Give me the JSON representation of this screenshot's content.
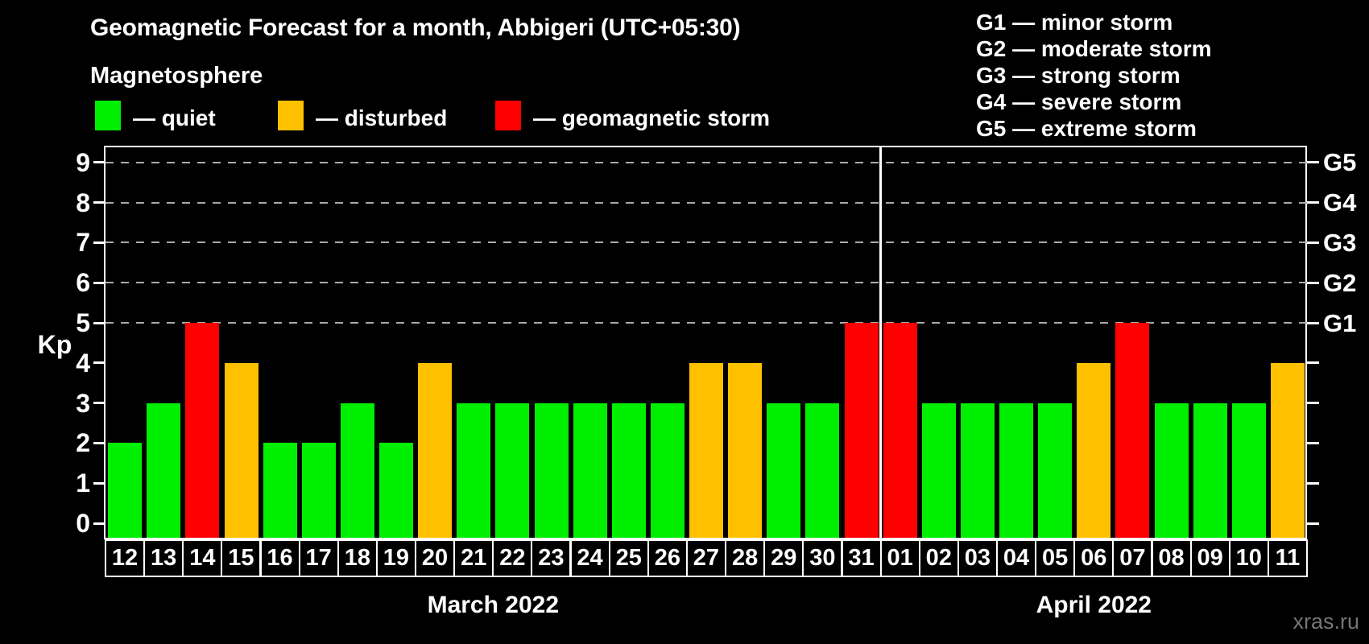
{
  "chart_data": {
    "type": "bar",
    "title": "Geomagnetic Forecast for a month, Abbigeri (UTC+05:30)",
    "subtitle": "Magnetosphere",
    "ylabel": "Kp",
    "ylim": [
      0,
      9
    ],
    "grid": "dashed horizontal at Kp 5-9 only",
    "y_ticks": [
      0,
      1,
      2,
      3,
      4,
      5,
      6,
      7,
      8,
      9
    ],
    "gridline_values": [
      5,
      6,
      7,
      8,
      9
    ],
    "right_axis_labels": [
      {
        "label": "G1",
        "value": 5
      },
      {
        "label": "G2",
        "value": 6
      },
      {
        "label": "G3",
        "value": 7
      },
      {
        "label": "G4",
        "value": 8
      },
      {
        "label": "G5",
        "value": 9
      }
    ],
    "months": [
      {
        "label": "March 2022",
        "days": 20
      },
      {
        "label": "April 2022",
        "days": 11
      }
    ],
    "bars": [
      {
        "day": "12",
        "value": 2,
        "status": "quiet"
      },
      {
        "day": "13",
        "value": 3,
        "status": "quiet"
      },
      {
        "day": "14",
        "value": 5,
        "status": "storm"
      },
      {
        "day": "15",
        "value": 4,
        "status": "disturbed"
      },
      {
        "day": "16",
        "value": 2,
        "status": "quiet"
      },
      {
        "day": "17",
        "value": 2,
        "status": "quiet"
      },
      {
        "day": "18",
        "value": 3,
        "status": "quiet"
      },
      {
        "day": "19",
        "value": 2,
        "status": "quiet"
      },
      {
        "day": "20",
        "value": 4,
        "status": "disturbed"
      },
      {
        "day": "21",
        "value": 3,
        "status": "quiet"
      },
      {
        "day": "22",
        "value": 3,
        "status": "quiet"
      },
      {
        "day": "23",
        "value": 3,
        "status": "quiet"
      },
      {
        "day": "24",
        "value": 3,
        "status": "quiet"
      },
      {
        "day": "25",
        "value": 3,
        "status": "quiet"
      },
      {
        "day": "26",
        "value": 3,
        "status": "quiet"
      },
      {
        "day": "27",
        "value": 4,
        "status": "disturbed"
      },
      {
        "day": "28",
        "value": 4,
        "status": "disturbed"
      },
      {
        "day": "29",
        "value": 3,
        "status": "quiet"
      },
      {
        "day": "30",
        "value": 3,
        "status": "quiet"
      },
      {
        "day": "31",
        "value": 5,
        "status": "storm"
      },
      {
        "day": "01",
        "value": 5,
        "status": "storm"
      },
      {
        "day": "02",
        "value": 3,
        "status": "quiet"
      },
      {
        "day": "03",
        "value": 3,
        "status": "quiet"
      },
      {
        "day": "04",
        "value": 3,
        "status": "quiet"
      },
      {
        "day": "05",
        "value": 3,
        "status": "quiet"
      },
      {
        "day": "06",
        "value": 4,
        "status": "disturbed"
      },
      {
        "day": "07",
        "value": 5,
        "status": "storm"
      },
      {
        "day": "08",
        "value": 3,
        "status": "quiet"
      },
      {
        "day": "09",
        "value": 3,
        "status": "quiet"
      },
      {
        "day": "10",
        "value": 3,
        "status": "quiet"
      },
      {
        "day": "11",
        "value": 4,
        "status": "disturbed"
      }
    ]
  },
  "legend": {
    "items": [
      {
        "label": "— quiet",
        "status": "quiet"
      },
      {
        "label": "— disturbed",
        "status": "disturbed"
      },
      {
        "label": "— geomagnetic storm",
        "status": "storm"
      }
    ]
  },
  "g_legend": {
    "items": [
      "G1 — minor storm",
      "G2 — moderate storm",
      "G3 — strong storm",
      "G4 — severe storm",
      "G5 — extreme storm"
    ]
  },
  "palette": {
    "quiet": "#00ee00",
    "disturbed": "#ffc000",
    "storm": "#ff0000",
    "grid": "#aaaaaa",
    "axis": "#ffffff",
    "watermark_color": "#767676"
  },
  "watermark": {
    "text": "xras.ru"
  }
}
